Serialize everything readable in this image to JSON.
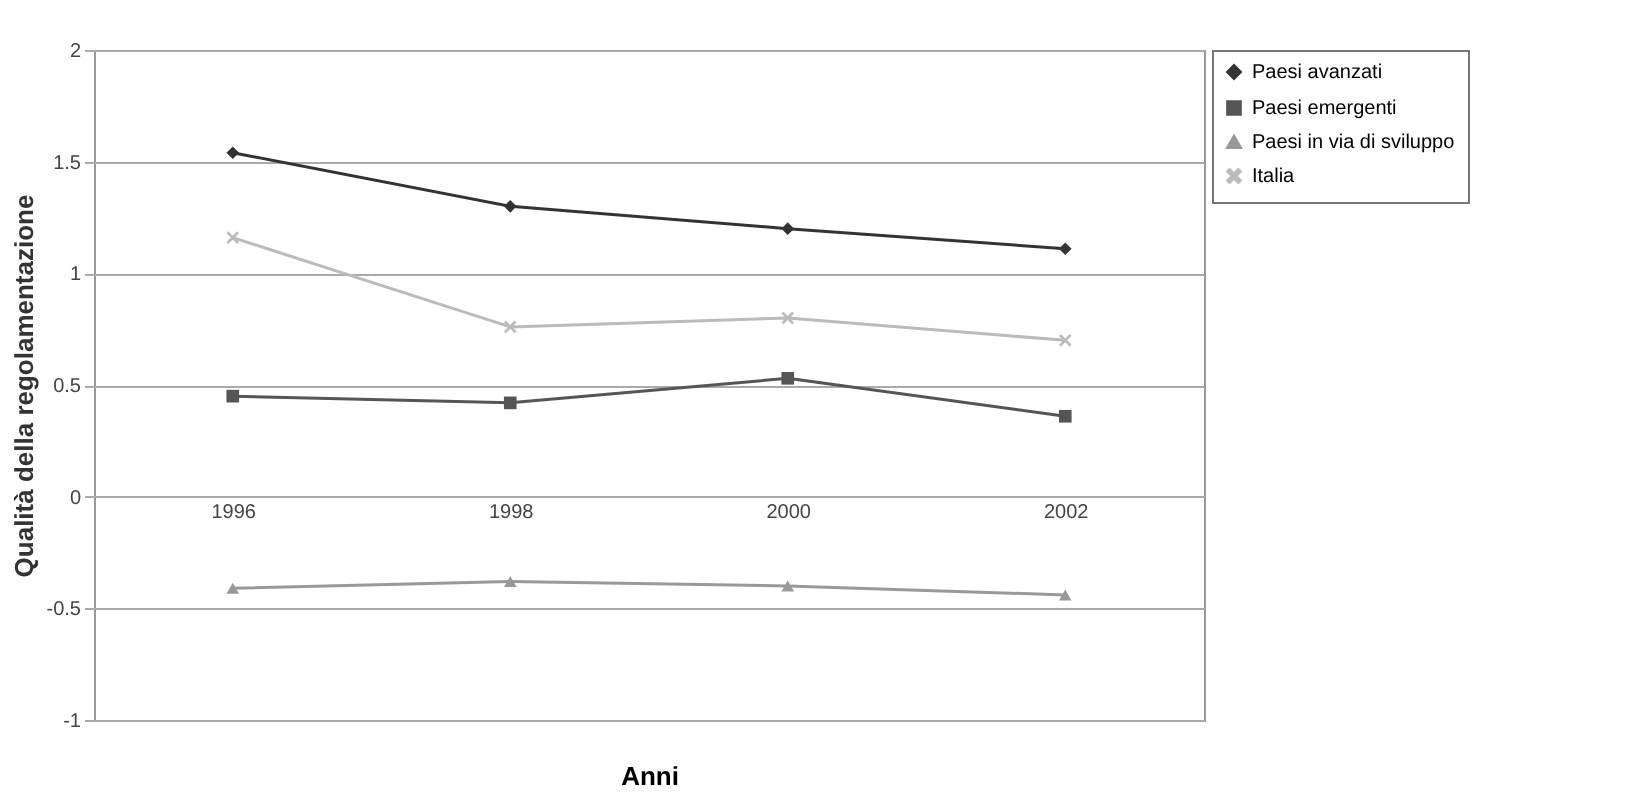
{
  "chart_data": {
    "type": "line",
    "xlabel": "Anni",
    "ylabel": "Qualità della regolamentazione",
    "categories": [
      "1996",
      "1998",
      "2000",
      "2002"
    ],
    "series": [
      {
        "name": "Paesi avanzati",
        "color": "#333333",
        "marker": "diamond",
        "values": [
          1.54,
          1.3,
          1.2,
          1.11
        ]
      },
      {
        "name": "Paesi emergenti",
        "color": "#555555",
        "marker": "square",
        "values": [
          0.45,
          0.42,
          0.53,
          0.36
        ]
      },
      {
        "name": "Paesi in via di sviluppo",
        "color": "#999999",
        "marker": "triangle",
        "values": [
          -0.41,
          -0.38,
          -0.4,
          -0.44
        ]
      },
      {
        "name": "Italia",
        "color": "#bbbbbb",
        "marker": "cross",
        "values": [
          1.16,
          0.76,
          0.8,
          0.7
        ]
      }
    ],
    "ylim": [
      -1,
      2
    ],
    "yticks": [
      -1,
      -0.5,
      0,
      0.5,
      1,
      1.5,
      2
    ],
    "grid": "y",
    "legend": "right"
  }
}
